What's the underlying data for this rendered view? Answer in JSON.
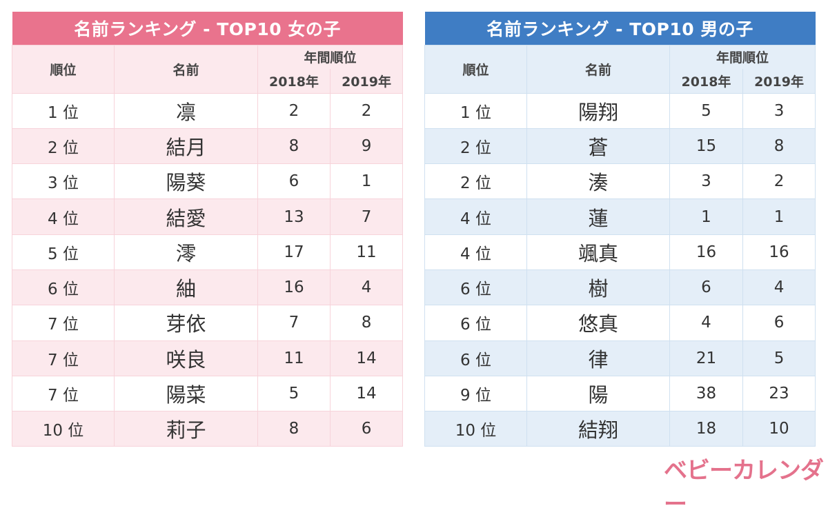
{
  "girls": {
    "title": "名前ランキング - TOP10 女の子",
    "headers": {
      "rank": "順位",
      "name": "名前",
      "annual": "年間順位",
      "y2018": "2018年",
      "y2019": "2019年"
    },
    "rows": [
      {
        "rank": "1 位",
        "name": "凛",
        "y2018": "2",
        "y2019": "2"
      },
      {
        "rank": "2 位",
        "name": "結月",
        "y2018": "8",
        "y2019": "9"
      },
      {
        "rank": "3 位",
        "name": "陽葵",
        "y2018": "6",
        "y2019": "1"
      },
      {
        "rank": "4 位",
        "name": "結愛",
        "y2018": "13",
        "y2019": "7"
      },
      {
        "rank": "5 位",
        "name": "澪",
        "y2018": "17",
        "y2019": "11"
      },
      {
        "rank": "6 位",
        "name": "紬",
        "y2018": "16",
        "y2019": "4"
      },
      {
        "rank": "7 位",
        "name": "芽依",
        "y2018": "7",
        "y2019": "8"
      },
      {
        "rank": "7 位",
        "name": "咲良",
        "y2018": "11",
        "y2019": "14"
      },
      {
        "rank": "7 位",
        "name": "陽菜",
        "y2018": "5",
        "y2019": "14"
      },
      {
        "rank": "10 位",
        "name": "莉子",
        "y2018": "8",
        "y2019": "6"
      }
    ]
  },
  "boys": {
    "title": "名前ランキング - TOP10 男の子",
    "headers": {
      "rank": "順位",
      "name": "名前",
      "annual": "年間順位",
      "y2018": "2018年",
      "y2019": "2019年"
    },
    "rows": [
      {
        "rank": "1 位",
        "name": "陽翔",
        "y2018": "5",
        "y2019": "3"
      },
      {
        "rank": "2 位",
        "name": "蒼",
        "y2018": "15",
        "y2019": "8"
      },
      {
        "rank": "2 位",
        "name": "湊",
        "y2018": "3",
        "y2019": "2"
      },
      {
        "rank": "4 位",
        "name": "蓮",
        "y2018": "1",
        "y2019": "1"
      },
      {
        "rank": "4 位",
        "name": "颯真",
        "y2018": "16",
        "y2019": "16"
      },
      {
        "rank": "6 位",
        "name": "樹",
        "y2018": "6",
        "y2019": "4"
      },
      {
        "rank": "6 位",
        "name": "悠真",
        "y2018": "4",
        "y2019": "6"
      },
      {
        "rank": "6 位",
        "name": "律",
        "y2018": "21",
        "y2019": "5"
      },
      {
        "rank": "9 位",
        "name": "陽",
        "y2018": "38",
        "y2019": "23"
      },
      {
        "rank": "10 位",
        "name": "結翔",
        "y2018": "18",
        "y2019": "10"
      }
    ]
  },
  "logo": "ベビーカレンダー",
  "colors": {
    "girls_accent": "#e9738d",
    "boys_accent": "#3f7dc4",
    "logo": "#e4728c"
  }
}
